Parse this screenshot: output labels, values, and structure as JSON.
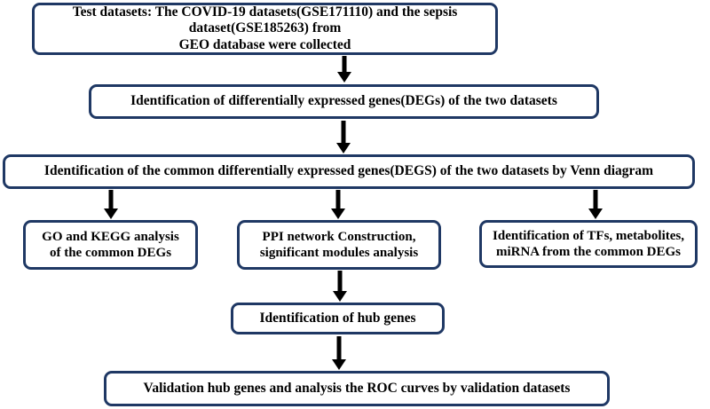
{
  "diagram": {
    "nodes": [
      {
        "id": "b1",
        "lines": [
          "Test datasets: The COVID-19 datasets(GSE171110) and the sepsis dataset(GSE185263) from",
          "GEO database were collected"
        ]
      },
      {
        "id": "b2",
        "lines": [
          "Identification of differentially expressed genes(DEGs) of the two datasets"
        ]
      },
      {
        "id": "b3",
        "lines": [
          "Identification of the common differentially expressed genes(DEGS) of the two datasets by Venn diagram"
        ]
      },
      {
        "id": "b4",
        "lines": [
          "GO and KEGG analysis",
          "of the common DEGs"
        ]
      },
      {
        "id": "b5",
        "lines": [
          "PPI network Construction,",
          "significant modules analysis"
        ]
      },
      {
        "id": "b6",
        "lines": [
          "Identification of TFs, metabolites,",
          "miRNA from the common DEGs"
        ]
      },
      {
        "id": "b7",
        "lines": [
          "Identification of hub genes"
        ]
      },
      {
        "id": "b8",
        "lines": [
          "Validation hub genes and analysis the ROC curves by validation datasets"
        ]
      }
    ],
    "edges": [
      {
        "from": "b1",
        "to": "b2"
      },
      {
        "from": "b2",
        "to": "b3"
      },
      {
        "from": "b3",
        "to": "b4"
      },
      {
        "from": "b3",
        "to": "b5"
      },
      {
        "from": "b3",
        "to": "b6"
      },
      {
        "from": "b5",
        "to": "b7"
      },
      {
        "from": "b7",
        "to": "b8"
      }
    ],
    "colors": {
      "box_border": "#1f3864",
      "arrow": "#000000",
      "text": "#000000"
    }
  }
}
